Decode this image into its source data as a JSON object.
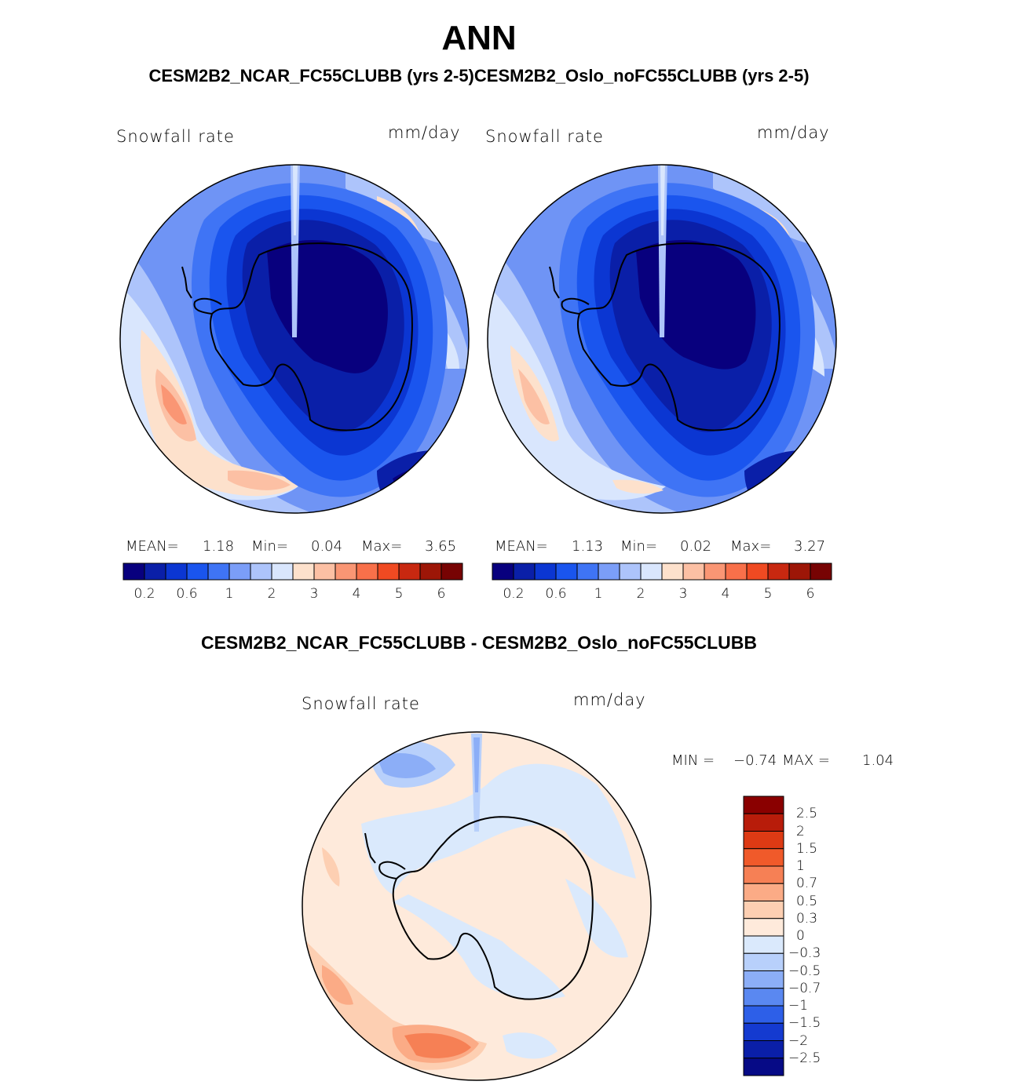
{
  "header": {
    "title": "ANN",
    "subtitle": "CESM2B2_NCAR_FC55CLUBB (yrs 2-5)CESM2B2_Oslo_noFC55CLUBB (yrs 2-5)"
  },
  "panels": [
    {
      "variable": "Snowfall rate",
      "units": "mm/day",
      "mean_label": "MEAN=",
      "mean": "1.18",
      "min_label": "Min=",
      "min": "0.04",
      "max_label": "Max=",
      "max": "3.65"
    },
    {
      "variable": "Snowfall rate",
      "units": "mm/day",
      "mean_label": "MEAN=",
      "mean": "1.13",
      "min_label": "Min=",
      "min": "0.02",
      "max_label": "Max=",
      "max": "3.27"
    }
  ],
  "colorbar_abs": {
    "colors": [
      "#08007e",
      "#0a1fa8",
      "#0b36d2",
      "#1a55ee",
      "#3f74f5",
      "#7b9ef8",
      "#adc4fb",
      "#d9e6fd",
      "#fde1cc",
      "#fcc0a4",
      "#fa9674",
      "#f8704a",
      "#f04a22",
      "#c82810",
      "#9d1607",
      "#770303"
    ],
    "tick_labels": [
      "0.2",
      "0.6",
      "1",
      "2",
      "3",
      "4",
      "5",
      "6"
    ]
  },
  "difference": {
    "title": "CESM2B2_NCAR_FC55CLUBB - CESM2B2_Oslo_noFC55CLUBB",
    "variable": "Snowfall rate",
    "units": "mm/day",
    "min_label": "MIN =",
    "min": "−0.74",
    "max_label": "MAX =",
    "max": "1.04"
  },
  "colorbar_diff": {
    "colors_top_to_bottom": [
      "#8a0000",
      "#b81c0a",
      "#dd3a14",
      "#f05a2a",
      "#f68055",
      "#fbab86",
      "#fdcfb2",
      "#feeadb",
      "#dae9fc",
      "#b8d0fb",
      "#8caef7",
      "#5a88f1",
      "#2d5fe8",
      "#143ad0",
      "#0a1fa8",
      "#060a86"
    ],
    "tick_labels": [
      "2.5",
      "2",
      "1.5",
      "1",
      "0.7",
      "0.5",
      "0.3",
      "0",
      "−0.3",
      "−0.5",
      "−0.7",
      "−1",
      "−1.5",
      "−2",
      "−2.5"
    ]
  }
}
